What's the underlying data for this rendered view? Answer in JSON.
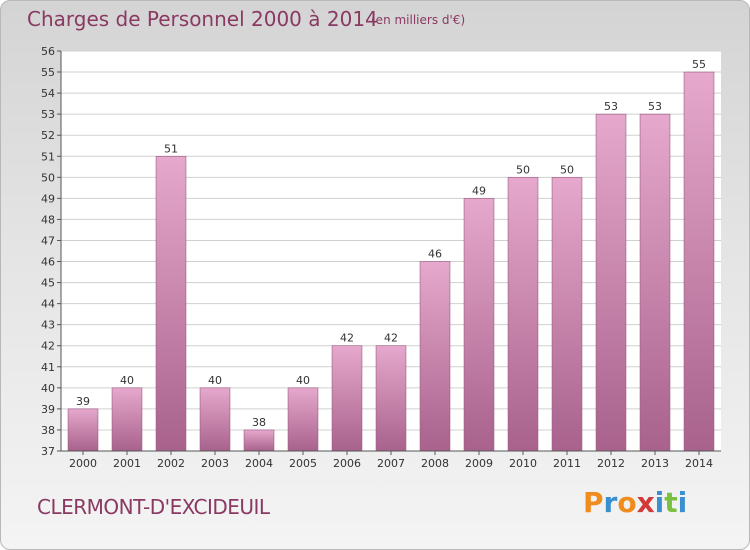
{
  "chart_data": {
    "type": "bar",
    "title": "Charges de Personnel 2000 à 2014",
    "subtitle": "(en milliers d'€)",
    "categories": [
      "2000",
      "2001",
      "2002",
      "2003",
      "2004",
      "2005",
      "2006",
      "2007",
      "2008",
      "2009",
      "2010",
      "2011",
      "2012",
      "2013",
      "2014"
    ],
    "values": [
      39,
      40,
      51,
      40,
      38,
      40,
      42,
      42,
      46,
      49,
      50,
      50,
      53,
      53,
      55
    ],
    "ylim": [
      37,
      56
    ],
    "yticks": [
      37,
      38,
      39,
      40,
      41,
      42,
      43,
      44,
      45,
      46,
      47,
      48,
      49,
      50,
      51,
      52,
      53,
      54,
      55,
      56
    ],
    "grid": true,
    "bar_color_top": "#e6a8cc",
    "bar_color_bottom": "#a8628c",
    "bar_edge": "#9a5a82"
  },
  "footer": {
    "commune": "CLERMONT-D'EXCIDEUIL",
    "brand": [
      "P",
      "r",
      "o",
      "x",
      "i",
      "t",
      "i"
    ],
    "brand_colors": [
      "#f08c1e",
      "#3a8fd0",
      "#f08c1e",
      "#d23a3a",
      "#3a8fd0",
      "#7ac142",
      "#3a8fd0"
    ]
  }
}
